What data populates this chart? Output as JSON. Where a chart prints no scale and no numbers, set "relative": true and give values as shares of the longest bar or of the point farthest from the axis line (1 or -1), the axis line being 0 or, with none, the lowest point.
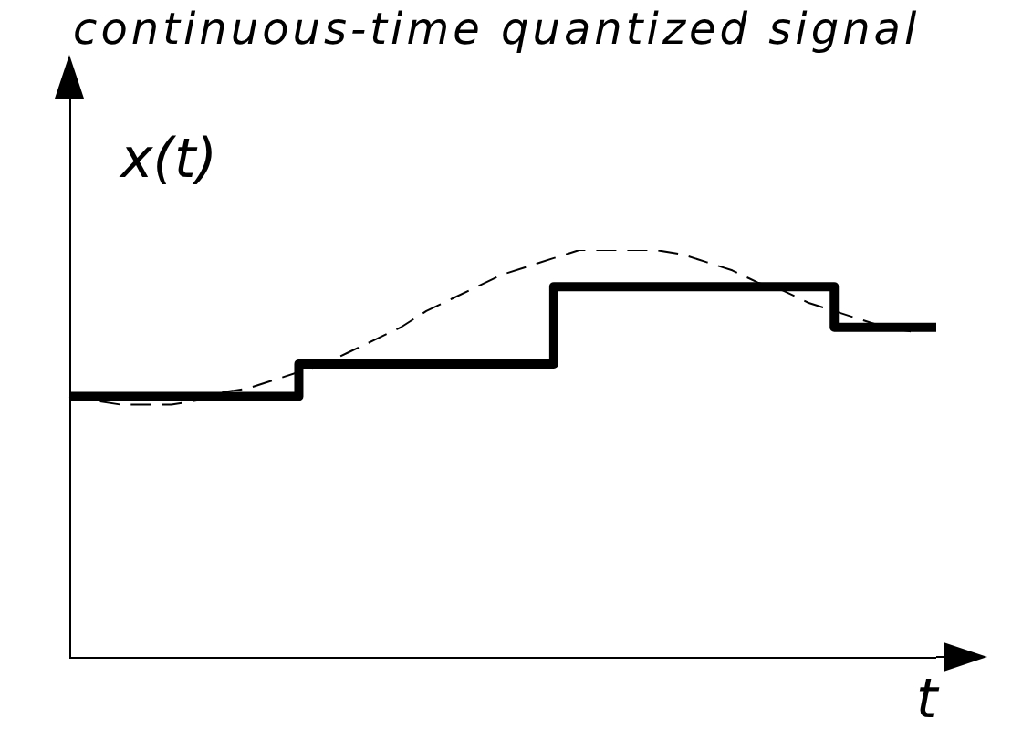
{
  "chart_data": {
    "type": "step",
    "title": "continuous-time quantized signal",
    "xlabel": "t",
    "ylabel": "x(t)",
    "relative": true,
    "legend": false,
    "marker": "none",
    "categories": [
      null,
      null,
      null,
      null,
      null,
      null,
      null,
      null,
      null,
      null,
      null,
      null,
      null,
      null,
      null,
      null,
      null,
      null,
      null,
      null,
      null,
      null,
      null,
      null,
      null,
      null,
      null,
      null,
      null,
      null,
      null,
      null,
      null,
      null,
      null
    ],
    "series": [
      {
        "color": "#000000",
        "line_style": "solid",
        "values": [
          0.64,
          0.64,
          0.64,
          0.64,
          0.64,
          0.64,
          0.64,
          0.64,
          0.64,
          0.64,
          0.72,
          0.72,
          0.72,
          0.72,
          0.72,
          0.72,
          0.72,
          0.72,
          0.72,
          0.72,
          0.91,
          0.91,
          0.91,
          0.91,
          0.91,
          0.91,
          0.91,
          0.91,
          0.91,
          0.91,
          0.91,
          0.81,
          0.81,
          0.81,
          0.81
        ]
      },
      {
        "type": "line",
        "color": "#000000",
        "line_style": "dashed",
        "values": [
          0.64,
          0.63,
          0.62,
          0.62,
          0.62,
          0.63,
          0.65,
          0.66,
          0.68,
          0.7,
          0.72,
          0.75,
          0.78,
          0.81,
          0.85,
          0.88,
          0.91,
          0.94,
          0.96,
          0.98,
          1.0,
          1.0,
          1.0,
          1.0,
          0.99,
          0.97,
          0.95,
          0.92,
          0.9,
          0.87,
          0.85,
          0.83,
          0.81,
          0.8,
          null
        ]
      }
    ]
  }
}
